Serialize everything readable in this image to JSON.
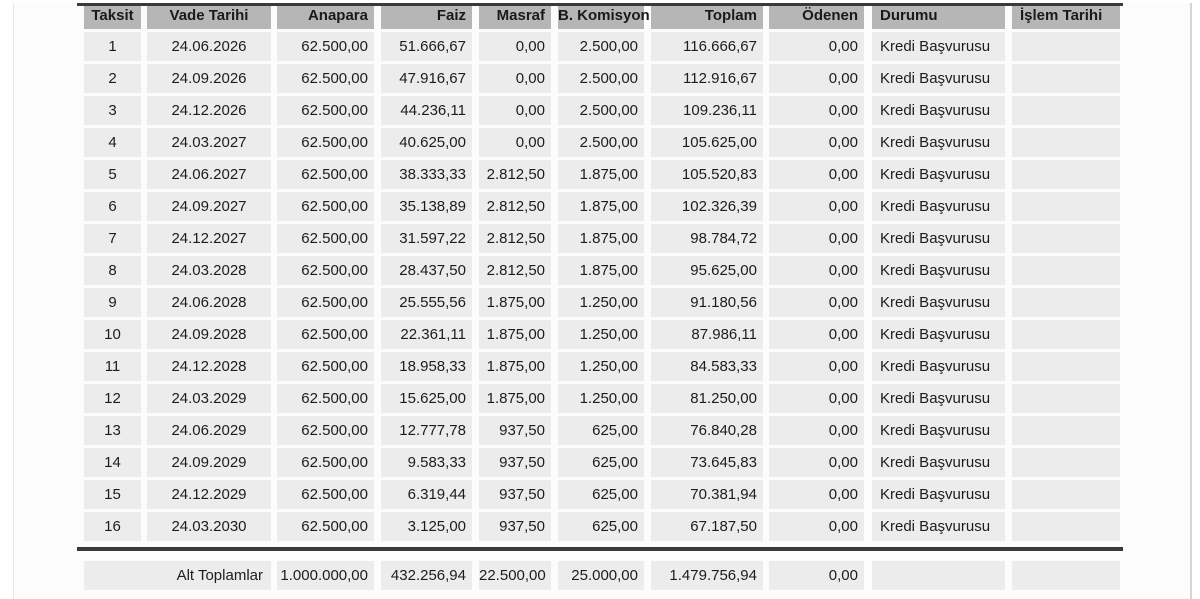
{
  "colors": {
    "header_bg": "#b6b6b6",
    "row_bg": "#ececec",
    "rule": "#3a3a3a",
    "text": "#1c1c1c",
    "page_bg": "#fcfcfc"
  },
  "table": {
    "columns": [
      {
        "key": "taksit",
        "label": "Taksit"
      },
      {
        "key": "vade",
        "label": "Vade Tarihi"
      },
      {
        "key": "anapara",
        "label": "Anapara"
      },
      {
        "key": "faiz",
        "label": "Faiz"
      },
      {
        "key": "masraf",
        "label": "Masraf"
      },
      {
        "key": "bkomisyon",
        "label": "B. Komisyon"
      },
      {
        "key": "toplam",
        "label": "Toplam"
      },
      {
        "key": "odenen",
        "label": "Ödenen"
      },
      {
        "key": "durumu",
        "label": "Durumu"
      },
      {
        "key": "islem",
        "label": "İşlem Tarihi"
      }
    ],
    "rows": [
      {
        "taksit": "1",
        "vade": "24.06.2026",
        "anapara": "62.500,00",
        "faiz": "51.666,67",
        "masraf": "0,00",
        "bkomisyon": "2.500,00",
        "toplam": "116.666,67",
        "odenen": "0,00",
        "durumu": "Kredi Başvurusu",
        "islem": ""
      },
      {
        "taksit": "2",
        "vade": "24.09.2026",
        "anapara": "62.500,00",
        "faiz": "47.916,67",
        "masraf": "0,00",
        "bkomisyon": "2.500,00",
        "toplam": "112.916,67",
        "odenen": "0,00",
        "durumu": "Kredi Başvurusu",
        "islem": ""
      },
      {
        "taksit": "3",
        "vade": "24.12.2026",
        "anapara": "62.500,00",
        "faiz": "44.236,11",
        "masraf": "0,00",
        "bkomisyon": "2.500,00",
        "toplam": "109.236,11",
        "odenen": "0,00",
        "durumu": "Kredi Başvurusu",
        "islem": ""
      },
      {
        "taksit": "4",
        "vade": "24.03.2027",
        "anapara": "62.500,00",
        "faiz": "40.625,00",
        "masraf": "0,00",
        "bkomisyon": "2.500,00",
        "toplam": "105.625,00",
        "odenen": "0,00",
        "durumu": "Kredi Başvurusu",
        "islem": ""
      },
      {
        "taksit": "5",
        "vade": "24.06.2027",
        "anapara": "62.500,00",
        "faiz": "38.333,33",
        "masraf": "2.812,50",
        "bkomisyon": "1.875,00",
        "toplam": "105.520,83",
        "odenen": "0,00",
        "durumu": "Kredi Başvurusu",
        "islem": ""
      },
      {
        "taksit": "6",
        "vade": "24.09.2027",
        "anapara": "62.500,00",
        "faiz": "35.138,89",
        "masraf": "2.812,50",
        "bkomisyon": "1.875,00",
        "toplam": "102.326,39",
        "odenen": "0,00",
        "durumu": "Kredi Başvurusu",
        "islem": ""
      },
      {
        "taksit": "7",
        "vade": "24.12.2027",
        "anapara": "62.500,00",
        "faiz": "31.597,22",
        "masraf": "2.812,50",
        "bkomisyon": "1.875,00",
        "toplam": "98.784,72",
        "odenen": "0,00",
        "durumu": "Kredi Başvurusu",
        "islem": ""
      },
      {
        "taksit": "8",
        "vade": "24.03.2028",
        "anapara": "62.500,00",
        "faiz": "28.437,50",
        "masraf": "2.812,50",
        "bkomisyon": "1.875,00",
        "toplam": "95.625,00",
        "odenen": "0,00",
        "durumu": "Kredi Başvurusu",
        "islem": ""
      },
      {
        "taksit": "9",
        "vade": "24.06.2028",
        "anapara": "62.500,00",
        "faiz": "25.555,56",
        "masraf": "1.875,00",
        "bkomisyon": "1.250,00",
        "toplam": "91.180,56",
        "odenen": "0,00",
        "durumu": "Kredi Başvurusu",
        "islem": ""
      },
      {
        "taksit": "10",
        "vade": "24.09.2028",
        "anapara": "62.500,00",
        "faiz": "22.361,11",
        "masraf": "1.875,00",
        "bkomisyon": "1.250,00",
        "toplam": "87.986,11",
        "odenen": "0,00",
        "durumu": "Kredi Başvurusu",
        "islem": ""
      },
      {
        "taksit": "11",
        "vade": "24.12.2028",
        "anapara": "62.500,00",
        "faiz": "18.958,33",
        "masraf": "1.875,00",
        "bkomisyon": "1.250,00",
        "toplam": "84.583,33",
        "odenen": "0,00",
        "durumu": "Kredi Başvurusu",
        "islem": ""
      },
      {
        "taksit": "12",
        "vade": "24.03.2029",
        "anapara": "62.500,00",
        "faiz": "15.625,00",
        "masraf": "1.875,00",
        "bkomisyon": "1.250,00",
        "toplam": "81.250,00",
        "odenen": "0,00",
        "durumu": "Kredi Başvurusu",
        "islem": ""
      },
      {
        "taksit": "13",
        "vade": "24.06.2029",
        "anapara": "62.500,00",
        "faiz": "12.777,78",
        "masraf": "937,50",
        "bkomisyon": "625,00",
        "toplam": "76.840,28",
        "odenen": "0,00",
        "durumu": "Kredi Başvurusu",
        "islem": ""
      },
      {
        "taksit": "14",
        "vade": "24.09.2029",
        "anapara": "62.500,00",
        "faiz": "9.583,33",
        "masraf": "937,50",
        "bkomisyon": "625,00",
        "toplam": "73.645,83",
        "odenen": "0,00",
        "durumu": "Kredi Başvurusu",
        "islem": ""
      },
      {
        "taksit": "15",
        "vade": "24.12.2029",
        "anapara": "62.500,00",
        "faiz": "6.319,44",
        "masraf": "937,50",
        "bkomisyon": "625,00",
        "toplam": "70.381,94",
        "odenen": "0,00",
        "durumu": "Kredi Başvurusu",
        "islem": ""
      },
      {
        "taksit": "16",
        "vade": "24.03.2030",
        "anapara": "62.500,00",
        "faiz": "3.125,00",
        "masraf": "937,50",
        "bkomisyon": "625,00",
        "toplam": "67.187,50",
        "odenen": "0,00",
        "durumu": "Kredi Başvurusu",
        "islem": ""
      }
    ],
    "footer": {
      "label": "Alt Toplamlar",
      "anapara": "1.000.000,00",
      "faiz": "432.256,94",
      "masraf": "22.500,00",
      "bkomisyon": "25.000,00",
      "toplam": "1.479.756,94",
      "odenen": "0,00"
    }
  }
}
